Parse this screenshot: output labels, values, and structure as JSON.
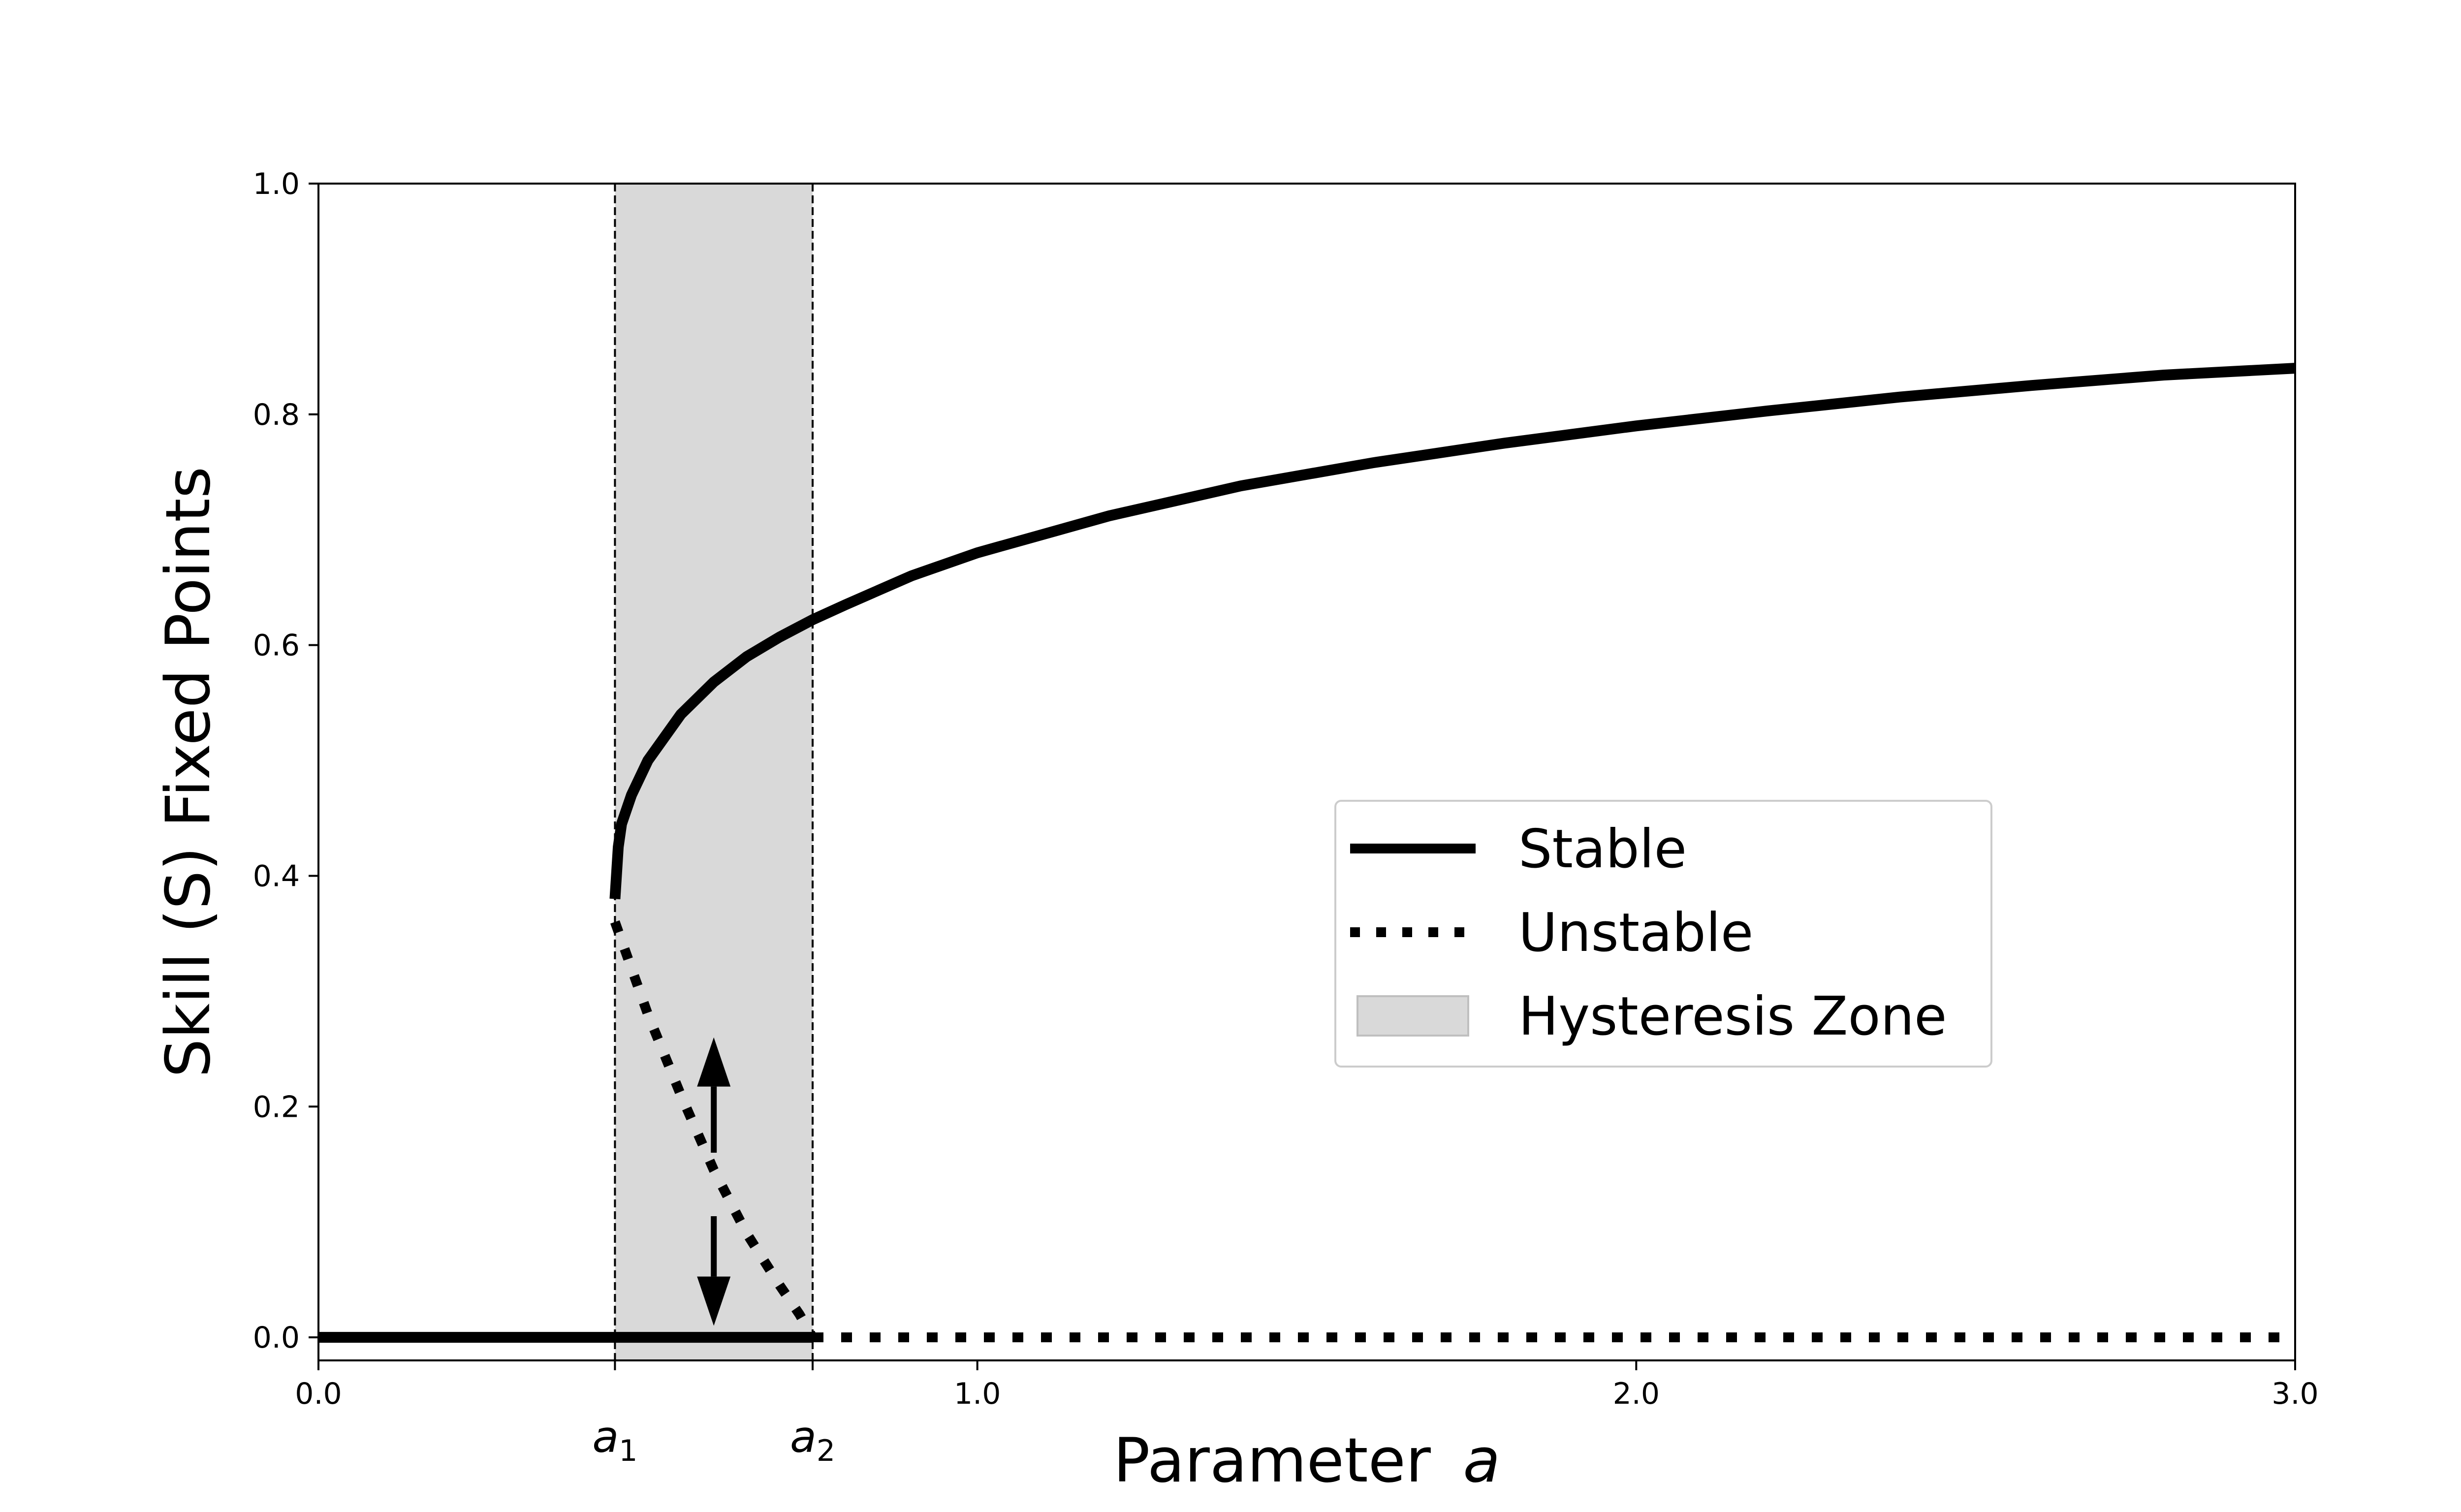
{
  "chart_data": {
    "type": "line",
    "xlabel": "Parameter",
    "xlabel_symbol": "a",
    "ylabel": "Skill (S) Fixed Points",
    "xlim": [
      0,
      3.0
    ],
    "ylim": [
      -0.02,
      1.0
    ],
    "yticks": [
      0.0,
      0.2,
      0.4,
      0.6,
      0.8,
      1.0
    ],
    "ytick_labels": [
      "0.0",
      "0.2",
      "0.4",
      "0.6",
      "0.8",
      "1.0"
    ],
    "xticks": [
      0.0,
      1.0,
      2.0,
      3.0
    ],
    "xtick_labels": [
      "0.0",
      "1.0",
      "2.0",
      "3.0"
    ],
    "grid": false,
    "legend_position": "center-right",
    "markers": [
      {
        "x": 0.45,
        "symbol": "a",
        "subscript": "1"
      },
      {
        "x": 0.75,
        "symbol": "a",
        "subscript": "2"
      }
    ],
    "hysteresis_zone": {
      "name": "Hysteresis Zone",
      "x": [
        0.45,
        0.75
      ],
      "color": "#d9d9d9"
    },
    "series": [
      {
        "name": "Stable",
        "style": "solid",
        "segments": [
          {
            "x": [
              0.0,
              0.75
            ],
            "y": [
              0.0,
              0.0
            ]
          },
          {
            "x": [
              0.45,
              0.455,
              0.46,
              0.475,
              0.5,
              0.55,
              0.6,
              0.65,
              0.7,
              0.75,
              0.8,
              0.9,
              1.0,
              1.2,
              1.4,
              1.6,
              1.8,
              2.0,
              2.2,
              2.4,
              2.6,
              2.8,
              3.0
            ],
            "y": [
              0.38,
              0.425,
              0.445,
              0.47,
              0.5,
              0.54,
              0.568,
              0.59,
              0.607,
              0.622,
              0.635,
              0.66,
              0.68,
              0.712,
              0.738,
              0.758,
              0.775,
              0.79,
              0.803,
              0.815,
              0.825,
              0.834,
              0.84
            ]
          }
        ]
      },
      {
        "name": "Unstable",
        "style": "dotted",
        "segments": [
          {
            "x": [
              0.45,
              0.5,
              0.55,
              0.6,
              0.65,
              0.7,
              0.73,
              0.75
            ],
            "y": [
              0.36,
              0.28,
              0.21,
              0.145,
              0.09,
              0.045,
              0.02,
              0.0
            ]
          },
          {
            "x": [
              0.75,
              3.0
            ],
            "y": [
              0.0,
              0.0
            ]
          }
        ]
      }
    ],
    "arrows": [
      {
        "x": 0.6,
        "from": 0.16,
        "to": 0.26
      },
      {
        "x": 0.6,
        "from": 0.105,
        "to": 0.01
      }
    ],
    "colors": {
      "line": "#000000",
      "zone": "#d9d9d9"
    }
  }
}
